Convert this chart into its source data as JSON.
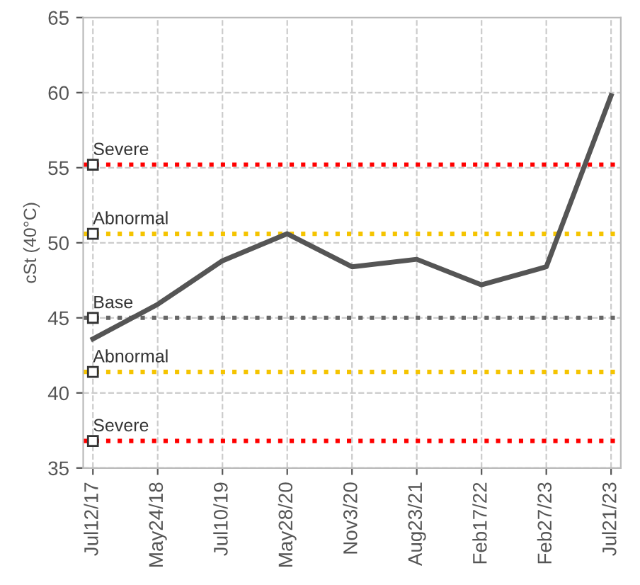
{
  "chart_data": {
    "type": "line",
    "ylabel": "cSt (40°C)",
    "categories": [
      "Jul12/17",
      "May24/18",
      "Jul10/19",
      "May28/20",
      "Nov3/20",
      "Aug23/21",
      "Feb17/22",
      "Feb27/23",
      "Jul21/23"
    ],
    "series": [
      {
        "color": "#555555",
        "values": [
          43.6,
          45.9,
          48.8,
          50.6,
          48.4,
          48.9,
          47.2,
          48.4,
          59.8
        ]
      }
    ],
    "ylim": [
      35,
      65
    ],
    "yticks": [
      35,
      40,
      45,
      50,
      55,
      60,
      65
    ],
    "grid": true,
    "marker": "none",
    "line_style": "solid",
    "ref_lines": [
      {
        "axis": "y",
        "value": 55.2,
        "label": "Severe",
        "color": "#ff0000",
        "line_style": "dotted"
      },
      {
        "axis": "y",
        "value": 50.6,
        "label": "Abnormal",
        "color": "#f5c400",
        "line_style": "dotted"
      },
      {
        "axis": "y",
        "value": 45,
        "label": "Base",
        "color": "#666666",
        "line_style": "dotted"
      },
      {
        "axis": "y",
        "value": 41.4,
        "label": "Abnormal",
        "color": "#f5c400",
        "line_style": "dotted"
      },
      {
        "axis": "y",
        "value": 36.8,
        "label": "Severe",
        "color": "#ff0000",
        "line_style": "dotted"
      }
    ]
  }
}
